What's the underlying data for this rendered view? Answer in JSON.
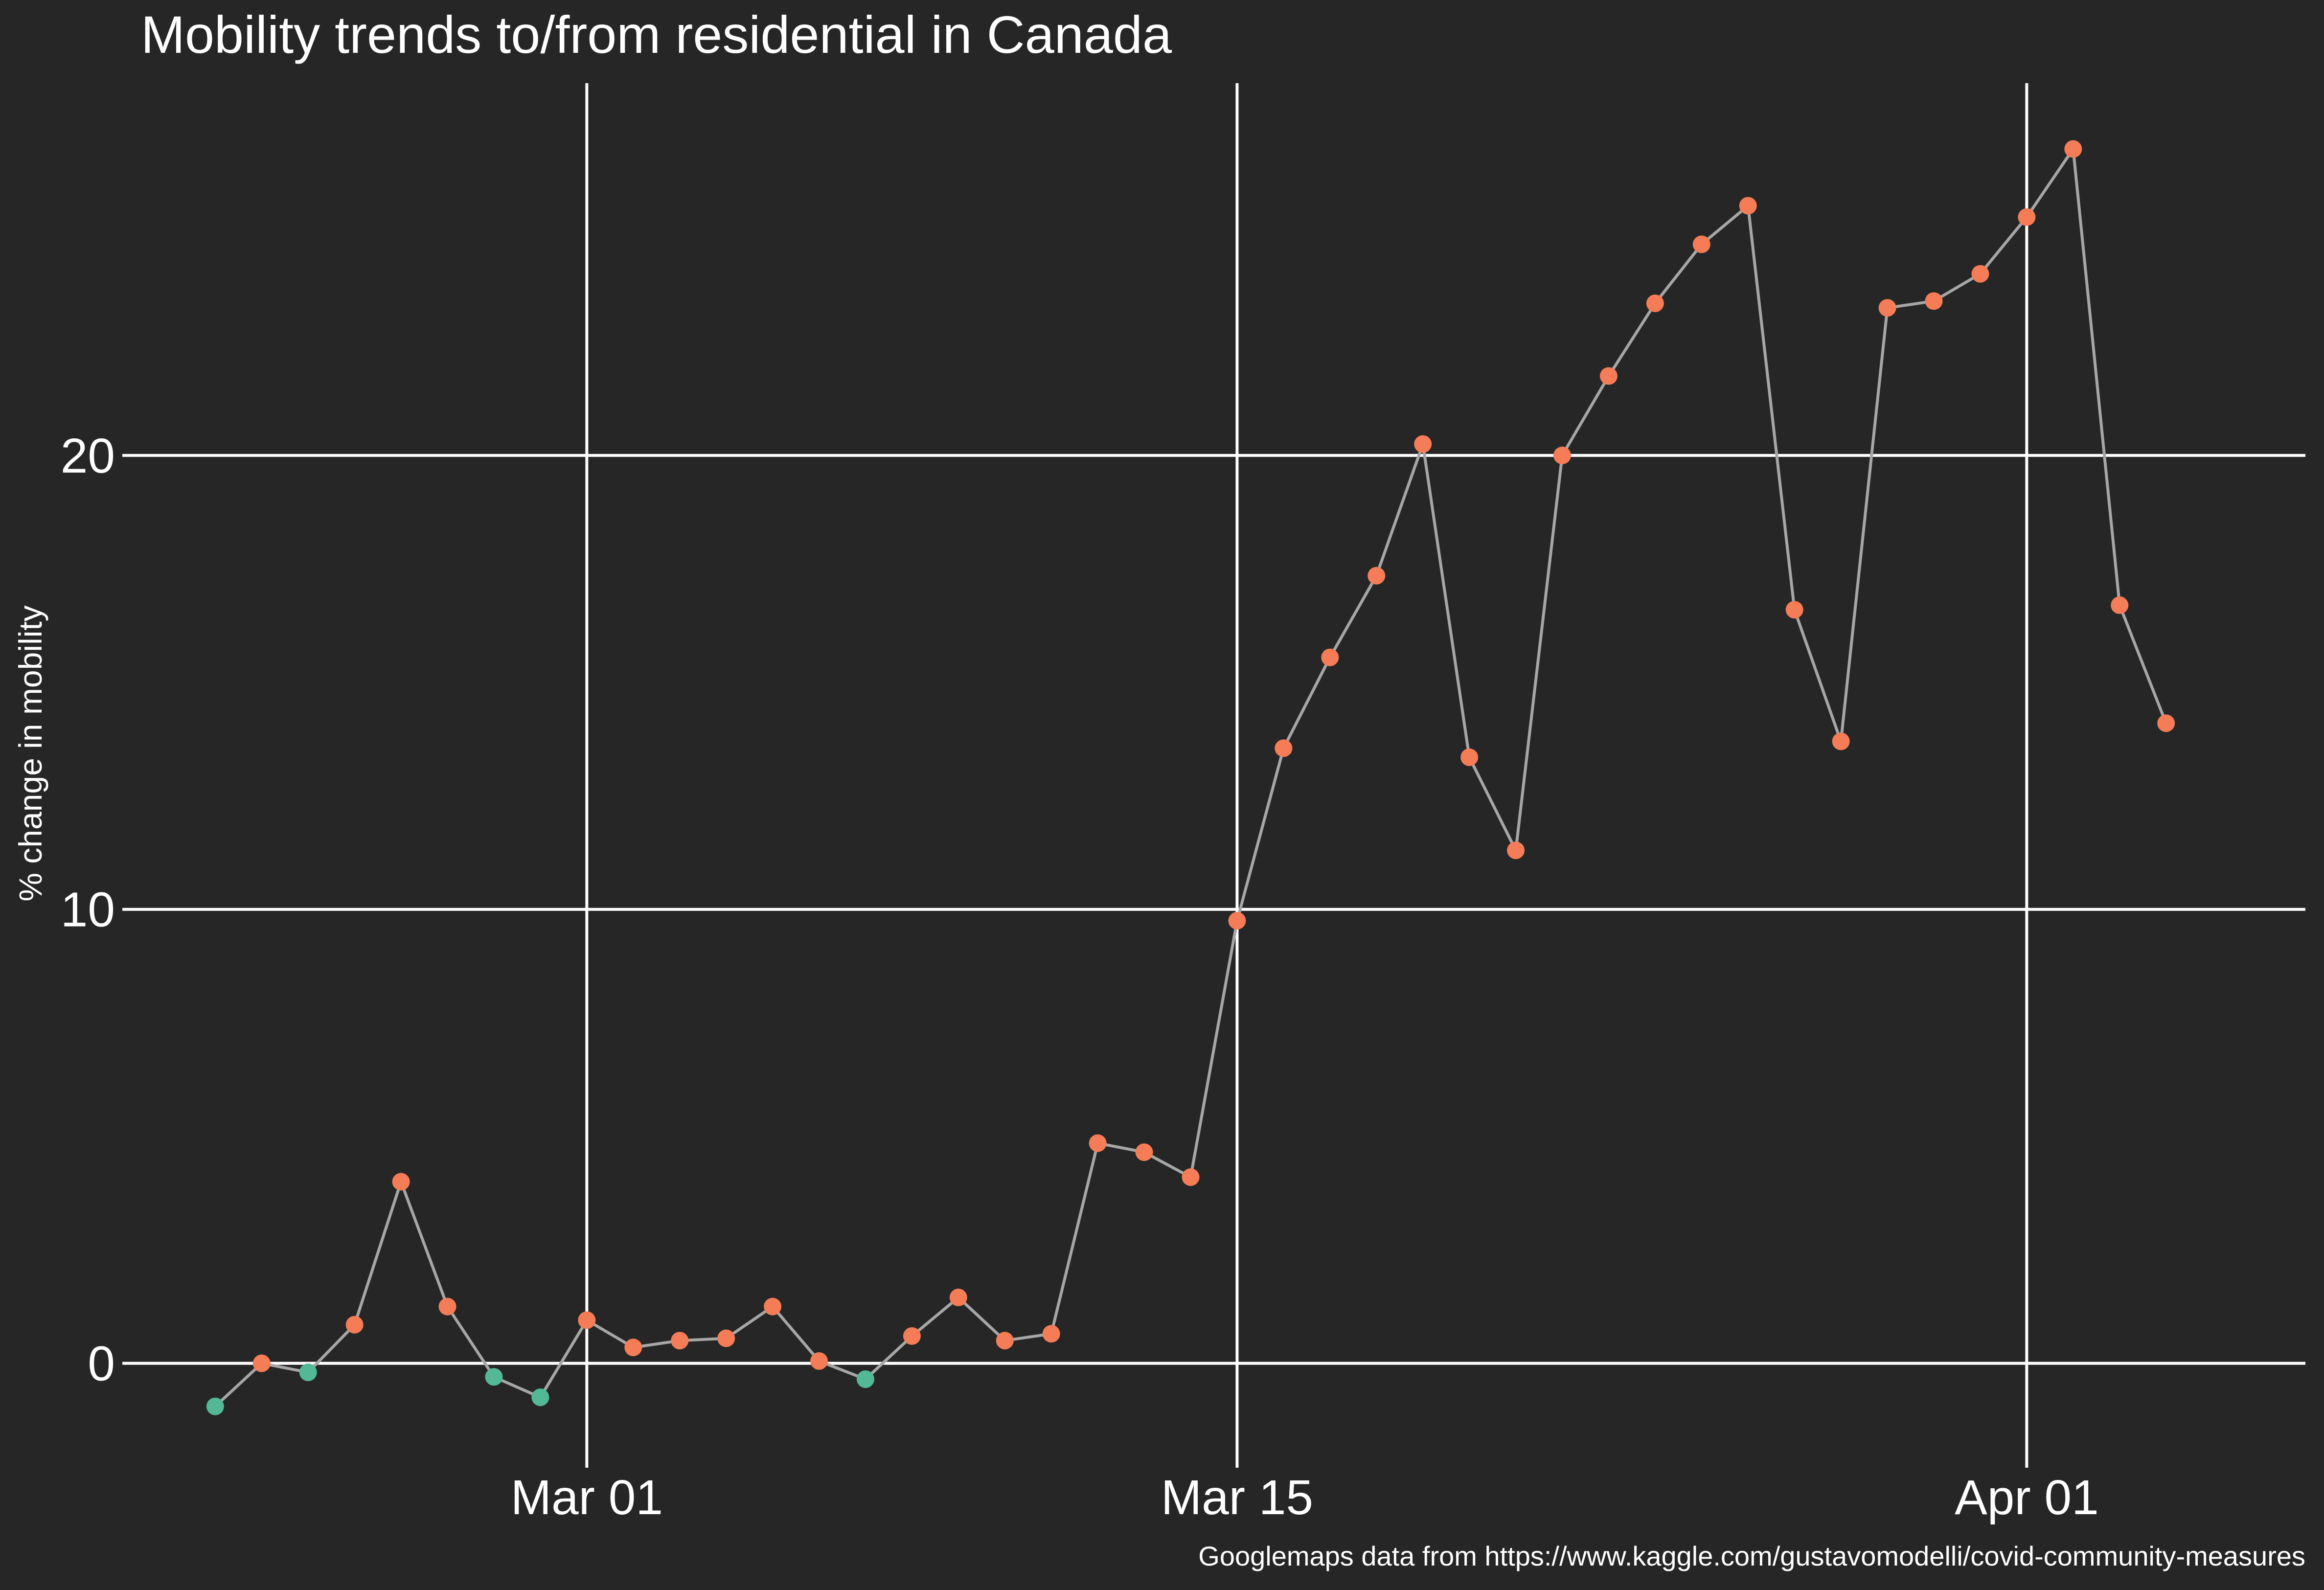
{
  "chart_data": {
    "type": "line",
    "title": "Mobility trends to/from residential in Canada",
    "ylabel": "% change in mobility",
    "xlabel": "",
    "caption": "Googlemaps data from https://www.kaggle.com/gustavomodelli/covid-community-measures",
    "x_ticks": [
      {
        "date": "2020-03-01",
        "label": "Mar 01"
      },
      {
        "date": "2020-03-15",
        "label": "Mar 15"
      },
      {
        "date": "2020-04-01",
        "label": "Apr 01"
      }
    ],
    "y_ticks": [
      0,
      10,
      20
    ],
    "xlim": [
      "2020-02-20",
      "2020-04-07"
    ],
    "ylim": [
      -2.3,
      28.2
    ],
    "grid": true,
    "colors": {
      "background": "#262626",
      "grid": "#ffffff",
      "line": "#a6a6a6",
      "point_negative": "#52b896",
      "point_positive": "#f47c56"
    },
    "series": [
      {
        "points": [
          {
            "x": "2020-02-22",
            "y": -0.95
          },
          {
            "x": "2020-02-23",
            "y": 0.0
          },
          {
            "x": "2020-02-24",
            "y": -0.2
          },
          {
            "x": "2020-02-25",
            "y": 0.85
          },
          {
            "x": "2020-02-26",
            "y": 4.0
          },
          {
            "x": "2020-02-27",
            "y": 1.25
          },
          {
            "x": "2020-02-28",
            "y": -0.3
          },
          {
            "x": "2020-02-29",
            "y": -0.75
          },
          {
            "x": "2020-03-01",
            "y": 0.95
          },
          {
            "x": "2020-03-02",
            "y": 0.35
          },
          {
            "x": "2020-03-03",
            "y": 0.5
          },
          {
            "x": "2020-03-04",
            "y": 0.55
          },
          {
            "x": "2020-03-05",
            "y": 1.25
          },
          {
            "x": "2020-03-06",
            "y": 0.05
          },
          {
            "x": "2020-03-07",
            "y": -0.35
          },
          {
            "x": "2020-03-08",
            "y": 0.6
          },
          {
            "x": "2020-03-09",
            "y": 1.45
          },
          {
            "x": "2020-03-10",
            "y": 0.5
          },
          {
            "x": "2020-03-11",
            "y": 0.65
          },
          {
            "x": "2020-03-12",
            "y": 4.85
          },
          {
            "x": "2020-03-13",
            "y": 4.65
          },
          {
            "x": "2020-03-14",
            "y": 4.1
          },
          {
            "x": "2020-03-15",
            "y": 9.75
          },
          {
            "x": "2020-03-16",
            "y": 13.55
          },
          {
            "x": "2020-03-17",
            "y": 15.55
          },
          {
            "x": "2020-03-18",
            "y": 17.35
          },
          {
            "x": "2020-03-19",
            "y": 20.25
          },
          {
            "x": "2020-03-20",
            "y": 13.35
          },
          {
            "x": "2020-03-21",
            "y": 11.3
          },
          {
            "x": "2020-03-22",
            "y": 20.0
          },
          {
            "x": "2020-03-23",
            "y": 21.75
          },
          {
            "x": "2020-03-24",
            "y": 23.35
          },
          {
            "x": "2020-03-25",
            "y": 24.65
          },
          {
            "x": "2020-03-26",
            "y": 25.5
          },
          {
            "x": "2020-03-27",
            "y": 16.6
          },
          {
            "x": "2020-03-28",
            "y": 13.7
          },
          {
            "x": "2020-03-29",
            "y": 23.25
          },
          {
            "x": "2020-03-30",
            "y": 23.4
          },
          {
            "x": "2020-03-31",
            "y": 24.0
          },
          {
            "x": "2020-04-01",
            "y": 25.25
          },
          {
            "x": "2020-04-02",
            "y": 26.75
          },
          {
            "x": "2020-04-03",
            "y": 16.7
          },
          {
            "x": "2020-04-04",
            "y": 14.1
          }
        ]
      }
    ]
  }
}
